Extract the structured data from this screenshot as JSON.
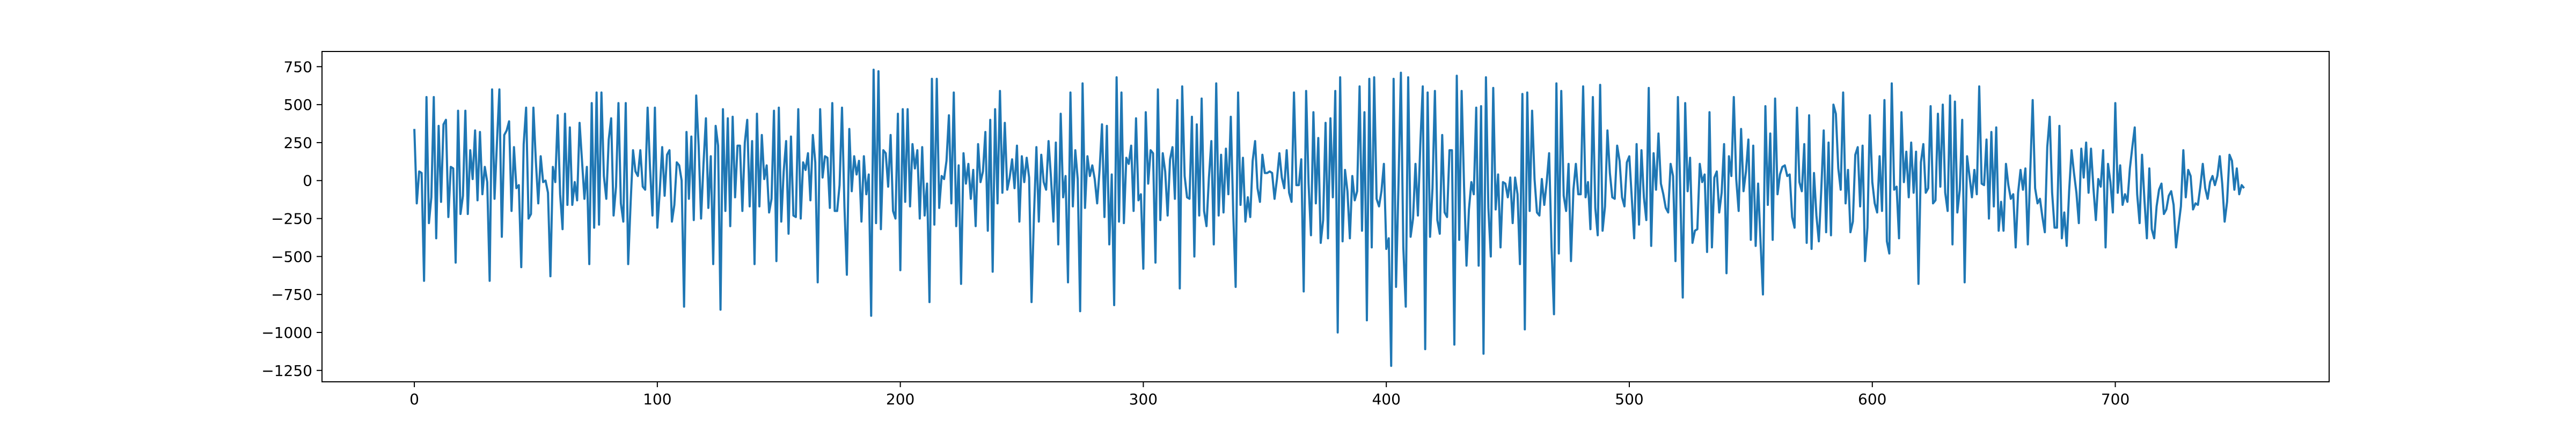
{
  "chart_data": {
    "type": "line",
    "title": "",
    "xlabel": "",
    "ylabel": "",
    "xlim": [
      -38,
      788
    ],
    "ylim": [
      -1325,
      850
    ],
    "xticks": [
      0,
      100,
      200,
      300,
      400,
      500,
      600,
      700
    ],
    "yticks": [
      750,
      500,
      250,
      0,
      -250,
      -500,
      -750,
      -1000,
      -1250
    ],
    "xtick_labels": [
      "0",
      "100",
      "200",
      "300",
      "400",
      "500",
      "600",
      "700"
    ],
    "ytick_labels": [
      "750",
      "500",
      "250",
      "0",
      "−250",
      "−500",
      "−750",
      "−1000",
      "−1250"
    ],
    "grid": false,
    "series": [
      {
        "color": "#1f77b4",
        "x_start": 0,
        "x_step": 1,
        "values": [
          340,
          -150,
          60,
          50,
          -660,
          550,
          -280,
          -110,
          550,
          -380,
          360,
          -140,
          370,
          400,
          -240,
          90,
          80,
          -540,
          460,
          -220,
          -100,
          460,
          -220,
          200,
          10,
          330,
          -130,
          320,
          -90,
          90,
          -10,
          -660,
          600,
          -120,
          250,
          600,
          -370,
          300,
          330,
          390,
          -200,
          220,
          -50,
          -30,
          -570,
          240,
          480,
          -250,
          -220,
          480,
          130,
          -150,
          160,
          -10,
          0,
          -80,
          -630,
          90,
          -10,
          430,
          -90,
          -320,
          440,
          -160,
          350,
          -160,
          -10,
          -130,
          380,
          130,
          -120,
          90,
          -550,
          510,
          -310,
          580,
          -290,
          580,
          30,
          -120,
          270,
          410,
          -230,
          -40,
          510,
          -150,
          -270,
          510,
          -550,
          -150,
          200,
          60,
          30,
          200,
          -40,
          -60,
          480,
          80,
          -230,
          480,
          -310,
          -70,
          220,
          -100,
          170,
          200,
          -270,
          -160,
          120,
          100,
          0,
          -830,
          320,
          -120,
          290,
          -260,
          560,
          230,
          -250,
          110,
          410,
          -180,
          160,
          -550,
          360,
          230,
          -850,
          470,
          -200,
          410,
          -300,
          420,
          -110,
          230,
          230,
          -200,
          250,
          400,
          -170,
          260,
          -550,
          440,
          -170,
          300,
          10,
          100,
          -210,
          -120,
          460,
          -530,
          480,
          -270,
          60,
          260,
          -350,
          290,
          -230,
          -240,
          470,
          -250,
          120,
          70,
          180,
          -130,
          300,
          120,
          -670,
          470,
          20,
          160,
          150,
          -180,
          510,
          -200,
          -200,
          -30,
          480,
          -170,
          -620,
          340,
          -70,
          160,
          40,
          130,
          -270,
          160,
          -90,
          40,
          -890,
          730,
          -280,
          720,
          -320,
          200,
          180,
          -40,
          300,
          -200,
          -250,
          440,
          -590,
          470,
          -140,
          470,
          -170,
          240,
          80,
          200,
          -250,
          220,
          -230,
          -20,
          -800,
          670,
          -290,
          670,
          -180,
          30,
          10,
          130,
          430,
          -150,
          580,
          -300,
          100,
          -680,
          180,
          -20,
          110,
          -120,
          70,
          -300,
          240,
          -10,
          60,
          320,
          -330,
          400,
          -600,
          470,
          -150,
          590,
          -80,
          380,
          -60,
          20,
          140,
          -50,
          230,
          -270,
          160,
          -10,
          150,
          20,
          -800,
          -230,
          220,
          -270,
          170,
          -10,
          -60,
          260,
          20,
          -270,
          250,
          -420,
          440,
          -110,
          30,
          -670,
          580,
          -170,
          200,
          10,
          -860,
          640,
          -180,
          160,
          30,
          100,
          10,
          -150,
          70,
          370,
          -240,
          360,
          -420,
          40,
          -820,
          680,
          -270,
          580,
          -280,
          150,
          110,
          230,
          -200,
          410,
          -130,
          -90,
          -580,
          450,
          -20,
          200,
          180,
          -540,
          600,
          -260,
          180,
          60,
          -230,
          140,
          220,
          -120,
          530,
          -710,
          620,
          30,
          -110,
          -120,
          420,
          -500,
          370,
          -230,
          540,
          -200,
          -300,
          20,
          260,
          -420,
          640,
          -230,
          170,
          -210,
          210,
          -90,
          420,
          -210,
          -700,
          580,
          -160,
          150,
          -270,
          -110,
          -240,
          130,
          260,
          -50,
          -140,
          170,
          50,
          50,
          60,
          50,
          -120,
          10,
          180,
          20,
          -50,
          200,
          -80,
          -140,
          580,
          -30,
          -30,
          140,
          -730,
          590,
          -20,
          -360,
          450,
          -150,
          280,
          -410,
          -260,
          380,
          -380,
          410,
          -110,
          590,
          -1000,
          680,
          -400,
          70,
          -70,
          -380,
          30,
          -130,
          -70,
          620,
          -330,
          450,
          -920,
          670,
          -440,
          680,
          -120,
          -170,
          -70,
          110,
          -450,
          -380,
          -1220,
          670,
          -700,
          -30,
          710,
          -440,
          -830,
          680,
          -370,
          -250,
          110,
          -230,
          240,
          620,
          -1110,
          580,
          -370,
          -50,
          590,
          -260,
          -350,
          300,
          -210,
          -240,
          200,
          200,
          -1080,
          690,
          -390,
          590,
          -40,
          -560,
          -190,
          -10,
          -90,
          480,
          -560,
          490,
          -1140,
          680,
          -180,
          -500,
          610,
          -190,
          40,
          -440,
          -10,
          -20,
          -110,
          20,
          -280,
          20,
          -90,
          -550,
          570,
          -980,
          580,
          -200,
          460,
          10,
          -210,
          -230,
          10,
          -160,
          -10,
          180,
          -440,
          -880,
          640,
          -480,
          590,
          -100,
          -200,
          110,
          -530,
          -60,
          110,
          -90,
          -90,
          620,
          -110,
          -10,
          -320,
          550,
          -180,
          -360,
          630,
          -330,
          -170,
          330,
          50,
          -110,
          -120,
          230,
          130,
          -110,
          -170,
          120,
          160,
          -110,
          -380,
          240,
          -290,
          200,
          -110,
          -260,
          610,
          -430,
          180,
          -60,
          310,
          -20,
          -90,
          -180,
          -210,
          110,
          30,
          -530,
          550,
          -90,
          -770,
          510,
          -70,
          150,
          -410,
          -330,
          -320,
          110,
          -10,
          40,
          -470,
          450,
          -440,
          20,
          60,
          -210,
          -80,
          240,
          -610,
          160,
          30,
          550,
          10,
          -200,
          340,
          -70,
          60,
          270,
          -390,
          230,
          -430,
          -20,
          -400,
          -750,
          490,
          -160,
          310,
          -390,
          540,
          -90,
          40,
          90,
          100,
          30,
          40,
          -240,
          -310,
          480,
          -10,
          -70,
          240,
          -410,
          430,
          -450,
          50,
          -230,
          -400,
          -60,
          330,
          -340,
          250,
          -360,
          500,
          440,
          80,
          -60,
          580,
          -150,
          70,
          -340,
          -270,
          170,
          220,
          -170,
          230,
          -530,
          -310,
          430,
          -10,
          -150,
          -210,
          160,
          -200,
          530,
          -400,
          -480,
          640,
          -60,
          -40,
          -380,
          450,
          -10,
          190,
          -110,
          250,
          -80,
          190,
          -680,
          120,
          240,
          -80,
          -50,
          490,
          -150,
          -130,
          440,
          -40,
          500,
          -80,
          -200,
          560,
          -420,
          520,
          -210,
          -60,
          400,
          -670,
          160,
          30,
          -110,
          70,
          -90,
          620,
          -20,
          -30,
          270,
          -250,
          320,
          -170,
          350,
          -330,
          -140,
          -330,
          110,
          -30,
          -120,
          -90,
          -440,
          -80,
          70,
          -60,
          80,
          -420,
          60,
          530,
          -50,
          -150,
          -120,
          -240,
          -340,
          220,
          420,
          -80,
          -310,
          -310,
          360,
          -380,
          -210,
          -430,
          -70,
          200,
          50,
          -80,
          -280,
          210,
          20,
          250,
          -80,
          210,
          -50,
          -260,
          10,
          -40,
          200,
          -440,
          110,
          -10,
          -210,
          510,
          -80,
          100,
          -160,
          -90,
          -140,
          80,
          220,
          350,
          -90,
          -280,
          170,
          -130,
          -380,
          80,
          -320,
          -380,
          -170,
          -60,
          -20,
          -220,
          -190,
          -100,
          -70,
          -160,
          -440,
          -300,
          -170,
          200,
          -110,
          70,
          30,
          -190,
          -150,
          -160,
          -40,
          110,
          -50,
          -120,
          -10,
          30,
          -30,
          30,
          160,
          -20,
          -270,
          -140,
          170,
          130,
          -60,
          80,
          -90,
          -30,
          -50
        ]
      }
    ]
  }
}
